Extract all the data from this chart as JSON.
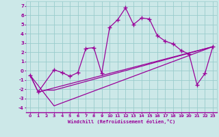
{
  "title": "",
  "xlabel": "Windchill (Refroidissement éolien,°C)",
  "bg_color": "#cce8e8",
  "line_color": "#990099",
  "grid_color": "#99cccc",
  "xlim": [
    -0.5,
    23.5
  ],
  "ylim": [
    -4.5,
    7.5
  ],
  "yticks": [
    -4,
    -3,
    -2,
    -1,
    0,
    1,
    2,
    3,
    4,
    5,
    6,
    7
  ],
  "xticks": [
    0,
    1,
    2,
    3,
    4,
    5,
    6,
    7,
    8,
    9,
    10,
    11,
    12,
    13,
    14,
    15,
    16,
    17,
    18,
    19,
    20,
    21,
    22,
    23
  ],
  "series1_x": [
    0,
    1,
    3,
    4,
    5,
    6,
    7,
    8,
    9,
    10,
    11,
    12,
    13,
    14,
    15,
    16,
    17,
    18,
    19,
    20,
    21,
    22,
    23
  ],
  "series1_y": [
    -0.5,
    -2.3,
    0.1,
    -0.2,
    -0.6,
    -0.2,
    2.4,
    2.5,
    -0.3,
    4.7,
    5.5,
    6.8,
    5.0,
    5.7,
    5.6,
    3.8,
    3.2,
    2.9,
    2.2,
    1.8,
    -1.5,
    -0.3,
    2.6
  ],
  "series2_x": [
    0,
    1,
    2,
    3,
    23
  ],
  "series2_y": [
    -0.5,
    -2.3,
    -2.1,
    -2.1,
    2.6
  ],
  "series3_x": [
    0,
    3,
    23
  ],
  "series3_y": [
    -0.5,
    -3.8,
    2.6
  ],
  "series4_x": [
    1,
    23
  ],
  "series4_y": [
    -2.3,
    2.6
  ],
  "marker_x": [
    0,
    1,
    3,
    4,
    5,
    6,
    7,
    8,
    9,
    10,
    11,
    12,
    13,
    14,
    15,
    16,
    17,
    18,
    19,
    20,
    21,
    22,
    23
  ],
  "marker_y": [
    -0.5,
    -2.3,
    0.1,
    -0.2,
    -0.6,
    -0.2,
    2.4,
    2.5,
    -0.3,
    4.7,
    5.5,
    6.8,
    5.0,
    5.7,
    5.6,
    3.8,
    3.2,
    2.9,
    2.2,
    1.8,
    -1.5,
    -0.3,
    2.6
  ]
}
